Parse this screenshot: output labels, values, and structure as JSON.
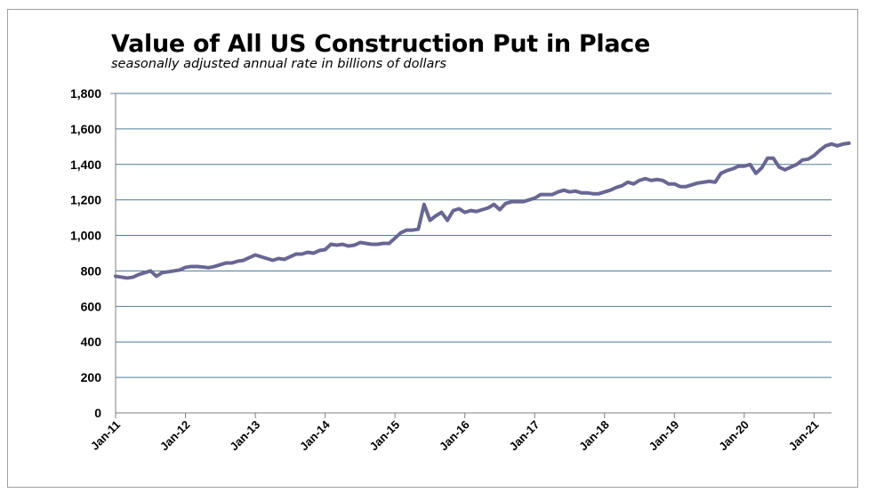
{
  "chart_data": {
    "type": "line",
    "title": "Value of All US Construction Put in Place",
    "subtitle": "seasonally adjusted annual rate in billions of dollars",
    "xlabel": "",
    "ylabel": "",
    "ylim": [
      0,
      1800
    ],
    "yticks": [
      "0",
      "200",
      "400",
      "600",
      "800",
      "1,000",
      "1,200",
      "1,400",
      "1,600",
      "1,800"
    ],
    "xticks": [
      "Jan-11",
      "Jan-12",
      "Jan-13",
      "Jan-14",
      "Jan-15",
      "Jan-16",
      "Jan-17",
      "Jan-18",
      "Jan-19",
      "Jan-20",
      "Jan-21"
    ],
    "grid": true,
    "legend": "none",
    "series": [
      {
        "color": "#686694",
        "x_start": "Jan-11",
        "values": [
          770,
          765,
          760,
          765,
          780,
          790,
          800,
          770,
          790,
          795,
          800,
          805,
          820,
          825,
          825,
          822,
          818,
          825,
          835,
          845,
          845,
          855,
          860,
          875,
          890,
          880,
          870,
          860,
          870,
          865,
          880,
          895,
          895,
          905,
          900,
          915,
          920,
          950,
          945,
          950,
          940,
          945,
          960,
          955,
          950,
          950,
          955,
          955,
          985,
          1015,
          1030,
          1030,
          1035,
          1175,
          1085,
          1110,
          1130,
          1085,
          1140,
          1150,
          1130,
          1140,
          1135,
          1145,
          1155,
          1175,
          1145,
          1180,
          1190,
          1190,
          1190,
          1200,
          1210,
          1230,
          1230,
          1230,
          1245,
          1255,
          1245,
          1250,
          1240,
          1240,
          1235,
          1235,
          1245,
          1255,
          1270,
          1280,
          1300,
          1290,
          1310,
          1320,
          1310,
          1315,
          1310,
          1290,
          1290,
          1275,
          1275,
          1285,
          1295,
          1300,
          1305,
          1300,
          1350,
          1365,
          1375,
          1390,
          1390,
          1400,
          1350,
          1380,
          1435,
          1435,
          1385,
          1370,
          1385,
          1400,
          1425,
          1430,
          1450,
          1480,
          1505,
          1515,
          1505,
          1515,
          1520
        ]
      }
    ]
  }
}
